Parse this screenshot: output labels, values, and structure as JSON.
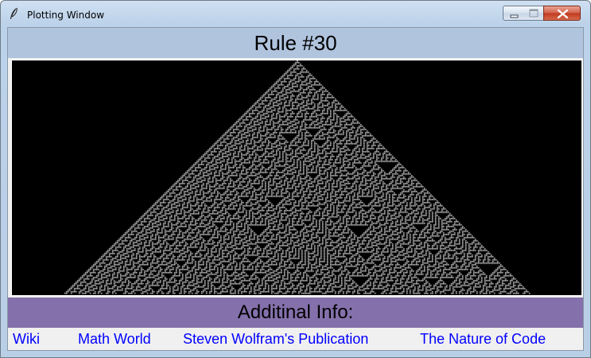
{
  "window": {
    "title": "Plotting Window",
    "icon": "feather-icon",
    "controls": [
      "minimize",
      "maximize",
      "close"
    ]
  },
  "header": {
    "title": "Rule #30"
  },
  "plot": {
    "rule": 30,
    "cell_colors": {
      "on": "#ffffff",
      "off": "#000000"
    }
  },
  "info": {
    "title": "Additinal Info:"
  },
  "links": [
    {
      "label": "Wiki"
    },
    {
      "label": "Math World"
    },
    {
      "label": "Steven Wolfram's Publication"
    },
    {
      "label": "The Nature of Code"
    }
  ],
  "colors": {
    "header_bg": "#b0c4de",
    "info_bg": "#8470ab",
    "link": "#0000ff",
    "canvas_bg": "#000000"
  }
}
